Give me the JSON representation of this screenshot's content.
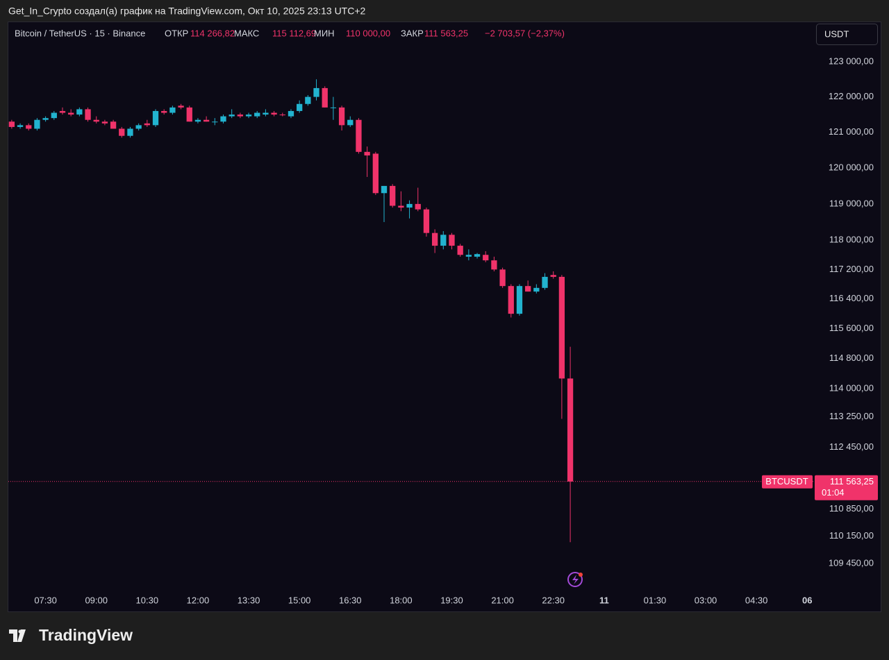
{
  "attribution": "Get_In_Crypto создал(а) график на TradingView.com, Окт 10, 2025 23:13 UTC+2",
  "header": {
    "symbol": "Bitcoin / TetherUS · 15 · Binance",
    "open_label": "ОТКР",
    "open": "114 266,82",
    "high_label": "МАКС",
    "high": "115 112,69",
    "low_label": "МИН",
    "low": "110 000,00",
    "close_label": "ЗАКР",
    "close": "111 563,25",
    "change": "−2 703,57 (−2,37%)"
  },
  "currency_button": "USDT",
  "brand": "TradingView",
  "chart_data": {
    "type": "candlestick",
    "log": true,
    "x": [
      6.5,
      6.75,
      7,
      7.25,
      7.5,
      7.75,
      8,
      8.25,
      8.5,
      8.75,
      9,
      9.25,
      9.5,
      9.75,
      10,
      10.25,
      10.5,
      10.75,
      11,
      11.25,
      11.5,
      11.75,
      12,
      12.25,
      12.5,
      12.75,
      13,
      13.25,
      13.5,
      13.75,
      14,
      14.25,
      14.5,
      14.75,
      15,
      15.25,
      15.5,
      15.75,
      16,
      16.25,
      16.5,
      16.75,
      17,
      17.25,
      17.5,
      17.75,
      18,
      18.25,
      18.5,
      18.75,
      19,
      19.25,
      19.5,
      19.75,
      20,
      20.25,
      20.5,
      20.75,
      21,
      21.25,
      21.5,
      21.75,
      22,
      22.25,
      22.5,
      22.75,
      23
    ],
    "series": [
      {
        "name": "BTCUSDT",
        "up_color": "#22b3cf",
        "down_color": "#f0336a",
        "open": [
          121300,
          121150,
          121200,
          121100,
          121350,
          121400,
          121600,
          121550,
          121500,
          121650,
          121350,
          121300,
          121300,
          121100,
          120900,
          121100,
          121250,
          121200,
          121600,
          121550,
          121750,
          121700,
          121300,
          121350,
          121300,
          121300,
          121450,
          121500,
          121450,
          121450,
          121500,
          121550,
          121500,
          121450,
          121600,
          121800,
          122000,
          122250,
          121700,
          121700,
          121200,
          121350,
          120450,
          120400,
          119300,
          119500,
          118950,
          118900,
          119000,
          118850,
          118200,
          117850,
          118150,
          117850,
          117550,
          117550,
          117600,
          117450,
          117200,
          116750,
          116000,
          116750,
          116600,
          116700,
          117050,
          117000,
          114266.82
        ],
        "high": [
          121350,
          121250,
          121250,
          121400,
          121450,
          121600,
          121700,
          121650,
          121700,
          121700,
          121450,
          121350,
          121350,
          121150,
          121150,
          121250,
          121350,
          121650,
          121650,
          121750,
          121800,
          121750,
          121400,
          121450,
          121400,
          121500,
          121650,
          121550,
          121550,
          121600,
          121650,
          121600,
          121550,
          121650,
          121900,
          122050,
          122500,
          122300,
          122000,
          121750,
          121450,
          121400,
          120600,
          120450,
          119500,
          119550,
          119350,
          119100,
          119450,
          118900,
          118300,
          118250,
          118200,
          117900,
          117750,
          117650,
          117700,
          117550,
          117250,
          116800,
          116800,
          116900,
          116800,
          117100,
          117150,
          117050,
          115112.69
        ],
        "low": [
          121100,
          121100,
          121050,
          121050,
          121300,
          121350,
          121500,
          121450,
          121450,
          121300,
          121250,
          121200,
          121100,
          120850,
          120850,
          121050,
          121150,
          121150,
          121500,
          121500,
          121650,
          121300,
          121250,
          121300,
          121200,
          121250,
          121400,
          121400,
          121400,
          121400,
          121450,
          121450,
          121450,
          121400,
          121550,
          121750,
          121900,
          121700,
          121350,
          121050,
          121150,
          120400,
          119750,
          119250,
          118500,
          118900,
          118800,
          118600,
          118800,
          118100,
          117650,
          117750,
          117750,
          117550,
          117450,
          117500,
          117400,
          117150,
          116700,
          115900,
          115950,
          116600,
          116550,
          116650,
          116950,
          113200,
          110000
        ],
        "close": [
          121150,
          121200,
          121100,
          121350,
          121400,
          121550,
          121550,
          121500,
          121650,
          121350,
          121300,
          121250,
          121100,
          120900,
          121100,
          121200,
          121200,
          121600,
          121550,
          121700,
          121700,
          121300,
          121350,
          121300,
          121300,
          121450,
          121500,
          121450,
          121500,
          121550,
          121550,
          121500,
          121480,
          121600,
          121800,
          122000,
          122250,
          121700,
          121700,
          121200,
          121350,
          120450,
          120350,
          119300,
          119500,
          118950,
          118900,
          119000,
          118850,
          118200,
          117850,
          118150,
          117850,
          117600,
          117600,
          117620,
          117450,
          117200,
          116750,
          116000,
          116750,
          116600,
          116700,
          117000,
          117000,
          114266.82,
          111563.25
        ]
      }
    ],
    "price_label": {
      "value": 111563.25,
      "label": "111 563,25",
      "countdown": "01:04",
      "color": "#f0336a"
    },
    "xlim": [
      6.4,
      30.2
    ],
    "xticks": [
      {
        "value": 7.5,
        "label": "07:30"
      },
      {
        "value": 9,
        "label": "09:00"
      },
      {
        "value": 10.5,
        "label": "10:30"
      },
      {
        "value": 12,
        "label": "12:00"
      },
      {
        "value": 13.5,
        "label": "13:30"
      },
      {
        "value": 15,
        "label": "15:00"
      },
      {
        "value": 16.5,
        "label": "16:30"
      },
      {
        "value": 18,
        "label": "18:00"
      },
      {
        "value": 19.5,
        "label": "19:30"
      },
      {
        "value": 21,
        "label": "21:00"
      },
      {
        "value": 22.5,
        "label": "22:30"
      },
      {
        "value": 24,
        "label": "11"
      },
      {
        "value": 25.5,
        "label": "01:30"
      },
      {
        "value": 27,
        "label": "03:00"
      },
      {
        "value": 28.5,
        "label": "04:30"
      },
      {
        "value": 30,
        "label": "06"
      }
    ],
    "ylim": [
      108768,
      124137
    ],
    "yticks": [
      {
        "value": 123000,
        "label": "123 000,00"
      },
      {
        "value": 122000,
        "label": "122 000,00"
      },
      {
        "value": 121000,
        "label": "121 000,00"
      },
      {
        "value": 120000,
        "label": "120 000,00"
      },
      {
        "value": 119000,
        "label": "119 000,00"
      },
      {
        "value": 118000,
        "label": "118 000,00"
      },
      {
        "value": 117200,
        "label": "117 200,00"
      },
      {
        "value": 116400,
        "label": "116 400,00"
      },
      {
        "value": 115600,
        "label": "115 600,00"
      },
      {
        "value": 114800,
        "label": "114 800,00"
      },
      {
        "value": 114000,
        "label": "114 000,00"
      },
      {
        "value": 113250,
        "label": "113 250,00"
      },
      {
        "value": 112450,
        "label": "112 450,00"
      },
      {
        "value": 110850,
        "label": "110 850,00"
      },
      {
        "value": 110150,
        "label": "110 150,00"
      },
      {
        "value": 109450,
        "label": "109 450,00"
      }
    ]
  }
}
